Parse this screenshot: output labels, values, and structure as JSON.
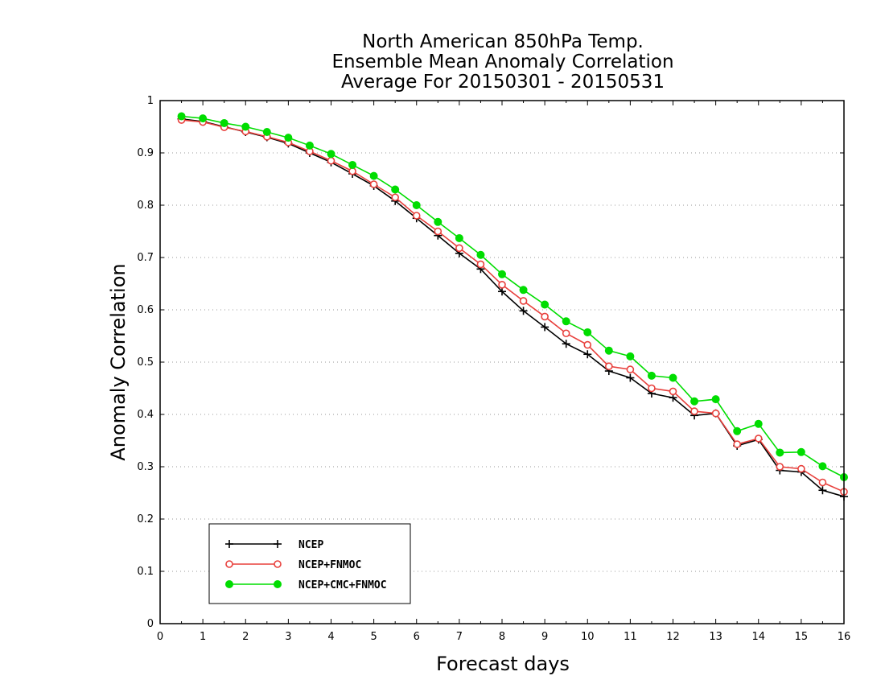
{
  "chart_data": {
    "type": "line",
    "title_lines": [
      "North American 850hPa Temp.",
      "Ensemble Mean Anomaly Correlation",
      "Average For 20150301 - 20150531"
    ],
    "xlabel": "Forecast days",
    "ylabel": "Anomaly Correlation",
    "xlim": [
      0,
      16
    ],
    "ylim": [
      0,
      1
    ],
    "xticks": [
      "0",
      "1",
      "2",
      "3",
      "4",
      "5",
      "6",
      "7",
      "8",
      "9",
      "10",
      "11",
      "12",
      "13",
      "14",
      "15",
      "16"
    ],
    "yticks": [
      "0",
      "0.1",
      "0.2",
      "0.3",
      "0.4",
      "0.5",
      "0.6",
      "0.7",
      "0.8",
      "0.9",
      "1"
    ],
    "grid": "dotted horizontal",
    "legend_position": "bottom-left",
    "x": [
      0.5,
      1,
      1.5,
      2,
      2.5,
      3,
      3.5,
      4,
      4.5,
      5,
      5.5,
      6,
      6.5,
      7,
      7.5,
      8,
      8.5,
      9,
      9.5,
      10,
      10.5,
      11,
      11.5,
      12,
      12.5,
      13,
      13.5,
      14,
      14.5,
      15,
      15.5,
      16
    ],
    "series": [
      {
        "name": "NCEP",
        "color": "#000000",
        "marker": "plus",
        "values": [
          0.965,
          0.96,
          0.95,
          0.94,
          0.93,
          0.918,
          0.9,
          0.882,
          0.86,
          0.837,
          0.808,
          0.775,
          0.742,
          0.708,
          0.678,
          0.635,
          0.598,
          0.567,
          0.535,
          0.515,
          0.483,
          0.47,
          0.44,
          0.432,
          0.398,
          0.402,
          0.34,
          0.352,
          0.293,
          0.29,
          0.255,
          0.243
        ]
      },
      {
        "name": "NCEP+FNMOC",
        "color": "#e8403c",
        "marker": "open-circle",
        "values": [
          0.963,
          0.959,
          0.949,
          0.941,
          0.931,
          0.92,
          0.903,
          0.885,
          0.865,
          0.84,
          0.815,
          0.78,
          0.75,
          0.718,
          0.687,
          0.648,
          0.617,
          0.587,
          0.555,
          0.533,
          0.492,
          0.486,
          0.45,
          0.444,
          0.406,
          0.402,
          0.343,
          0.354,
          0.3,
          0.296,
          0.27,
          0.252
        ]
      },
      {
        "name": "NCEP+CMC+FNMOC",
        "color": "#00dd00",
        "marker": "filled-circle",
        "values": [
          0.97,
          0.966,
          0.957,
          0.95,
          0.94,
          0.929,
          0.914,
          0.898,
          0.877,
          0.856,
          0.83,
          0.8,
          0.768,
          0.737,
          0.705,
          0.668,
          0.638,
          0.61,
          0.578,
          0.557,
          0.522,
          0.511,
          0.474,
          0.47,
          0.425,
          0.429,
          0.368,
          0.382,
          0.327,
          0.328,
          0.301,
          0.28
        ]
      }
    ]
  }
}
